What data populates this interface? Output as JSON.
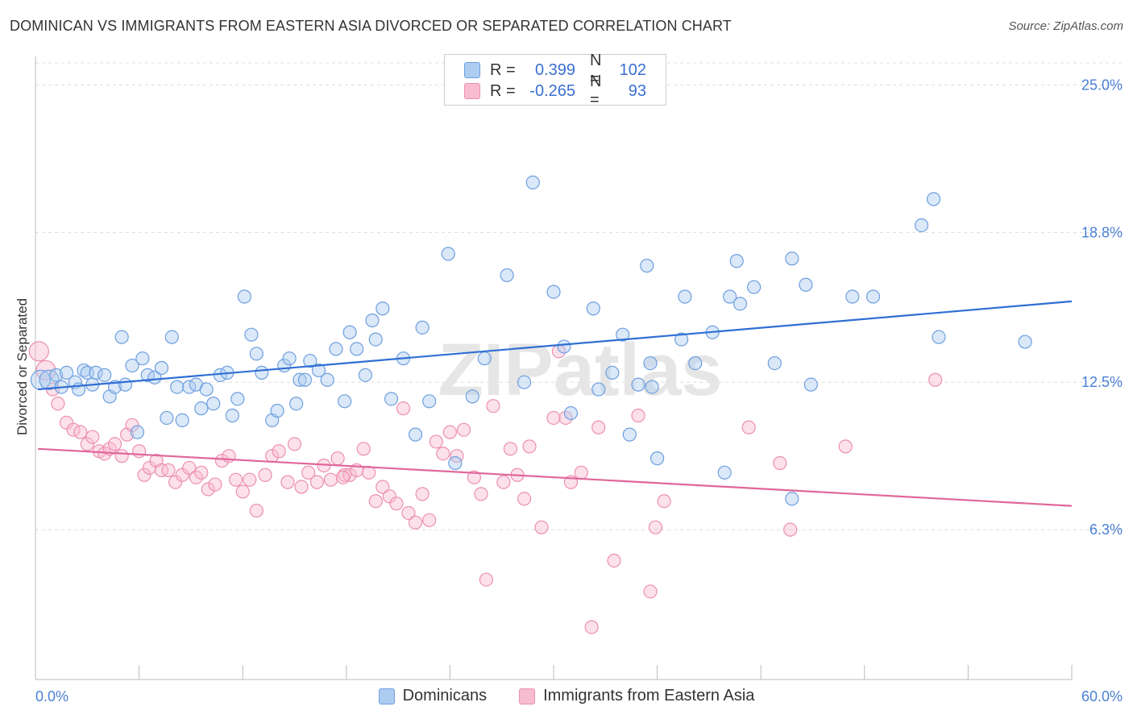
{
  "title": "DOMINICAN VS IMMIGRANTS FROM EASTERN ASIA DIVORCED OR SEPARATED CORRELATION CHART",
  "source": "Source: ZipAtlas.com",
  "watermark": "ZIPatlas",
  "colors": {
    "blue_fill": "#aecbf0",
    "blue_stroke": "#6e9fe0",
    "blue_line": "#2f6fd3",
    "pink_fill": "#f8bcd0",
    "pink_stroke": "#ec8fb0",
    "pink_line": "#e0679a",
    "grid": "#dddddd",
    "tick_text": "#4a7fd6"
  },
  "legend": {
    "rows": [
      {
        "r_label": "R =",
        "r_value": "0.399",
        "n_label": "N =",
        "n_value": "102",
        "color": "blue"
      },
      {
        "r_label": "R =",
        "r_value": "-0.265",
        "n_label": "N =",
        "n_value": "93",
        "color": "pink"
      }
    ]
  },
  "bottom_legend": [
    "Dominicans",
    "Immigrants from Eastern Asia"
  ],
  "chart_data": {
    "type": "scatter",
    "xlabel": "",
    "ylabel": "Divorced or Separated",
    "xlim": [
      0,
      60
    ],
    "ylim": [
      0,
      26.2
    ],
    "x_tick_labels": [
      "0.0%",
      "60.0%"
    ],
    "y_ticks": [
      6.3,
      12.5,
      18.8,
      25.0
    ],
    "y_tick_labels": [
      "6.3%",
      "12.5%",
      "18.8%",
      "25.0%"
    ],
    "grid": "horizontal dashed",
    "legend_position": "top-center",
    "series": [
      {
        "name": "Dominicans",
        "color": "blue",
        "trend": {
          "x": [
            0,
            60
          ],
          "y": [
            12.2,
            15.9
          ]
        },
        "points": [
          [
            0.3,
            12.6
          ],
          [
            0.8,
            12.6
          ],
          [
            1.2,
            12.8
          ],
          [
            1.5,
            12.3
          ],
          [
            1.8,
            12.9
          ],
          [
            2.3,
            12.5
          ],
          [
            2.5,
            12.2
          ],
          [
            2.8,
            13.0
          ],
          [
            3.0,
            12.9
          ],
          [
            3.3,
            12.4
          ],
          [
            3.5,
            12.9
          ],
          [
            4.0,
            12.8
          ],
          [
            4.3,
            11.9
          ],
          [
            4.6,
            12.3
          ],
          [
            5.0,
            14.4
          ],
          [
            5.2,
            12.4
          ],
          [
            5.6,
            13.2
          ],
          [
            5.9,
            10.4
          ],
          [
            6.2,
            13.5
          ],
          [
            6.5,
            12.8
          ],
          [
            6.9,
            12.7
          ],
          [
            7.3,
            13.1
          ],
          [
            7.6,
            11.0
          ],
          [
            7.9,
            14.4
          ],
          [
            8.2,
            12.3
          ],
          [
            8.5,
            10.9
          ],
          [
            8.9,
            12.3
          ],
          [
            9.3,
            12.4
          ],
          [
            9.6,
            11.4
          ],
          [
            9.9,
            12.2
          ],
          [
            10.3,
            11.6
          ],
          [
            10.7,
            12.8
          ],
          [
            11.1,
            12.9
          ],
          [
            11.4,
            11.1
          ],
          [
            11.7,
            11.8
          ],
          [
            12.1,
            16.1
          ],
          [
            12.5,
            14.5
          ],
          [
            12.8,
            13.7
          ],
          [
            13.1,
            12.9
          ],
          [
            13.7,
            10.9
          ],
          [
            14.0,
            11.3
          ],
          [
            14.4,
            13.2
          ],
          [
            14.7,
            13.5
          ],
          [
            15.1,
            11.6
          ],
          [
            15.3,
            12.6
          ],
          [
            15.6,
            12.6
          ],
          [
            15.9,
            13.4
          ],
          [
            16.4,
            13.0
          ],
          [
            16.9,
            12.6
          ],
          [
            17.4,
            13.9
          ],
          [
            17.9,
            11.7
          ],
          [
            18.2,
            14.6
          ],
          [
            18.6,
            13.9
          ],
          [
            19.1,
            12.8
          ],
          [
            19.5,
            15.1
          ],
          [
            19.7,
            14.3
          ],
          [
            20.1,
            15.6
          ],
          [
            20.6,
            11.8
          ],
          [
            21.3,
            13.5
          ],
          [
            22.0,
            10.3
          ],
          [
            22.4,
            14.8
          ],
          [
            22.8,
            11.7
          ],
          [
            23.9,
            17.9
          ],
          [
            24.3,
            9.1
          ],
          [
            25.3,
            11.9
          ],
          [
            26.0,
            13.5
          ],
          [
            27.3,
            17.0
          ],
          [
            28.3,
            12.5
          ],
          [
            28.8,
            20.9
          ],
          [
            30.0,
            16.3
          ],
          [
            30.6,
            14.0
          ],
          [
            31.0,
            11.2
          ],
          [
            32.3,
            15.6
          ],
          [
            32.6,
            12.2
          ],
          [
            33.4,
            12.9
          ],
          [
            34.0,
            14.5
          ],
          [
            34.4,
            10.3
          ],
          [
            34.9,
            12.4
          ],
          [
            35.4,
            17.4
          ],
          [
            35.6,
            13.3
          ],
          [
            35.7,
            12.3
          ],
          [
            36.0,
            9.3
          ],
          [
            37.4,
            14.3
          ],
          [
            37.6,
            16.1
          ],
          [
            38.2,
            13.3
          ],
          [
            39.2,
            14.6
          ],
          [
            39.9,
            8.7
          ],
          [
            40.2,
            16.1
          ],
          [
            40.6,
            17.6
          ],
          [
            40.8,
            15.8
          ],
          [
            41.6,
            16.5
          ],
          [
            42.8,
            13.3
          ],
          [
            43.8,
            17.7
          ],
          [
            44.6,
            16.6
          ],
          [
            44.9,
            12.4
          ],
          [
            47.3,
            16.1
          ],
          [
            48.5,
            16.1
          ],
          [
            51.3,
            19.1
          ],
          [
            52.0,
            20.2
          ],
          [
            52.3,
            14.4
          ],
          [
            57.3,
            14.2
          ],
          [
            43.8,
            7.6
          ]
        ]
      },
      {
        "name": "Immigrants from Eastern Asia",
        "color": "pink",
        "trend": {
          "x": [
            0,
            60
          ],
          "y": [
            9.7,
            7.3
          ]
        },
        "points": [
          [
            0.2,
            13.8
          ],
          [
            0.6,
            13.0
          ],
          [
            1.0,
            12.2
          ],
          [
            1.3,
            11.6
          ],
          [
            1.8,
            10.8
          ],
          [
            2.2,
            10.5
          ],
          [
            2.6,
            10.4
          ],
          [
            3.0,
            9.9
          ],
          [
            3.3,
            10.2
          ],
          [
            3.7,
            9.6
          ],
          [
            4.0,
            9.5
          ],
          [
            4.3,
            9.7
          ],
          [
            4.6,
            9.9
          ],
          [
            5.0,
            9.4
          ],
          [
            5.3,
            10.3
          ],
          [
            5.6,
            10.7
          ],
          [
            6.0,
            9.6
          ],
          [
            6.3,
            8.6
          ],
          [
            6.6,
            8.9
          ],
          [
            7.0,
            9.2
          ],
          [
            7.3,
            8.8
          ],
          [
            7.7,
            8.8
          ],
          [
            8.1,
            8.3
          ],
          [
            8.5,
            8.6
          ],
          [
            8.9,
            8.9
          ],
          [
            9.3,
            8.5
          ],
          [
            9.6,
            8.7
          ],
          [
            10.0,
            8.0
          ],
          [
            10.4,
            8.2
          ],
          [
            10.8,
            9.2
          ],
          [
            11.2,
            9.4
          ],
          [
            11.6,
            8.4
          ],
          [
            12.0,
            7.9
          ],
          [
            12.4,
            8.4
          ],
          [
            12.8,
            7.1
          ],
          [
            13.3,
            8.6
          ],
          [
            13.7,
            9.4
          ],
          [
            14.1,
            9.6
          ],
          [
            14.6,
            8.3
          ],
          [
            15.0,
            9.9
          ],
          [
            15.4,
            8.1
          ],
          [
            15.8,
            8.7
          ],
          [
            16.3,
            8.3
          ],
          [
            16.7,
            9.0
          ],
          [
            17.1,
            8.4
          ],
          [
            17.5,
            9.3
          ],
          [
            17.9,
            8.6
          ],
          [
            18.2,
            8.6
          ],
          [
            18.6,
            8.8
          ],
          [
            19.0,
            9.7
          ],
          [
            19.3,
            8.7
          ],
          [
            19.7,
            7.5
          ],
          [
            20.1,
            8.1
          ],
          [
            20.5,
            7.7
          ],
          [
            20.9,
            7.4
          ],
          [
            21.3,
            11.4
          ],
          [
            21.6,
            7.0
          ],
          [
            22.0,
            6.6
          ],
          [
            22.4,
            7.8
          ],
          [
            22.8,
            6.7
          ],
          [
            23.2,
            10.0
          ],
          [
            23.6,
            9.5
          ],
          [
            24.0,
            10.4
          ],
          [
            24.4,
            9.4
          ],
          [
            24.8,
            10.5
          ],
          [
            25.4,
            8.5
          ],
          [
            25.8,
            7.8
          ],
          [
            26.1,
            4.2
          ],
          [
            26.5,
            11.5
          ],
          [
            27.1,
            8.3
          ],
          [
            27.5,
            9.7
          ],
          [
            27.9,
            8.6
          ],
          [
            28.3,
            7.6
          ],
          [
            28.6,
            9.8
          ],
          [
            29.3,
            6.4
          ],
          [
            30.3,
            13.8
          ],
          [
            30.7,
            11.0
          ],
          [
            31.0,
            8.3
          ],
          [
            31.6,
            8.7
          ],
          [
            32.2,
            2.2
          ],
          [
            32.6,
            10.6
          ],
          [
            33.5,
            5.0
          ],
          [
            34.9,
            11.1
          ],
          [
            35.6,
            3.7
          ],
          [
            35.9,
            6.4
          ],
          [
            36.4,
            7.5
          ],
          [
            41.3,
            10.6
          ],
          [
            43.1,
            9.1
          ],
          [
            43.7,
            6.3
          ],
          [
            46.9,
            9.8
          ],
          [
            52.1,
            12.6
          ],
          [
            30.0,
            11.0
          ],
          [
            17.8,
            8.5
          ]
        ]
      }
    ]
  }
}
